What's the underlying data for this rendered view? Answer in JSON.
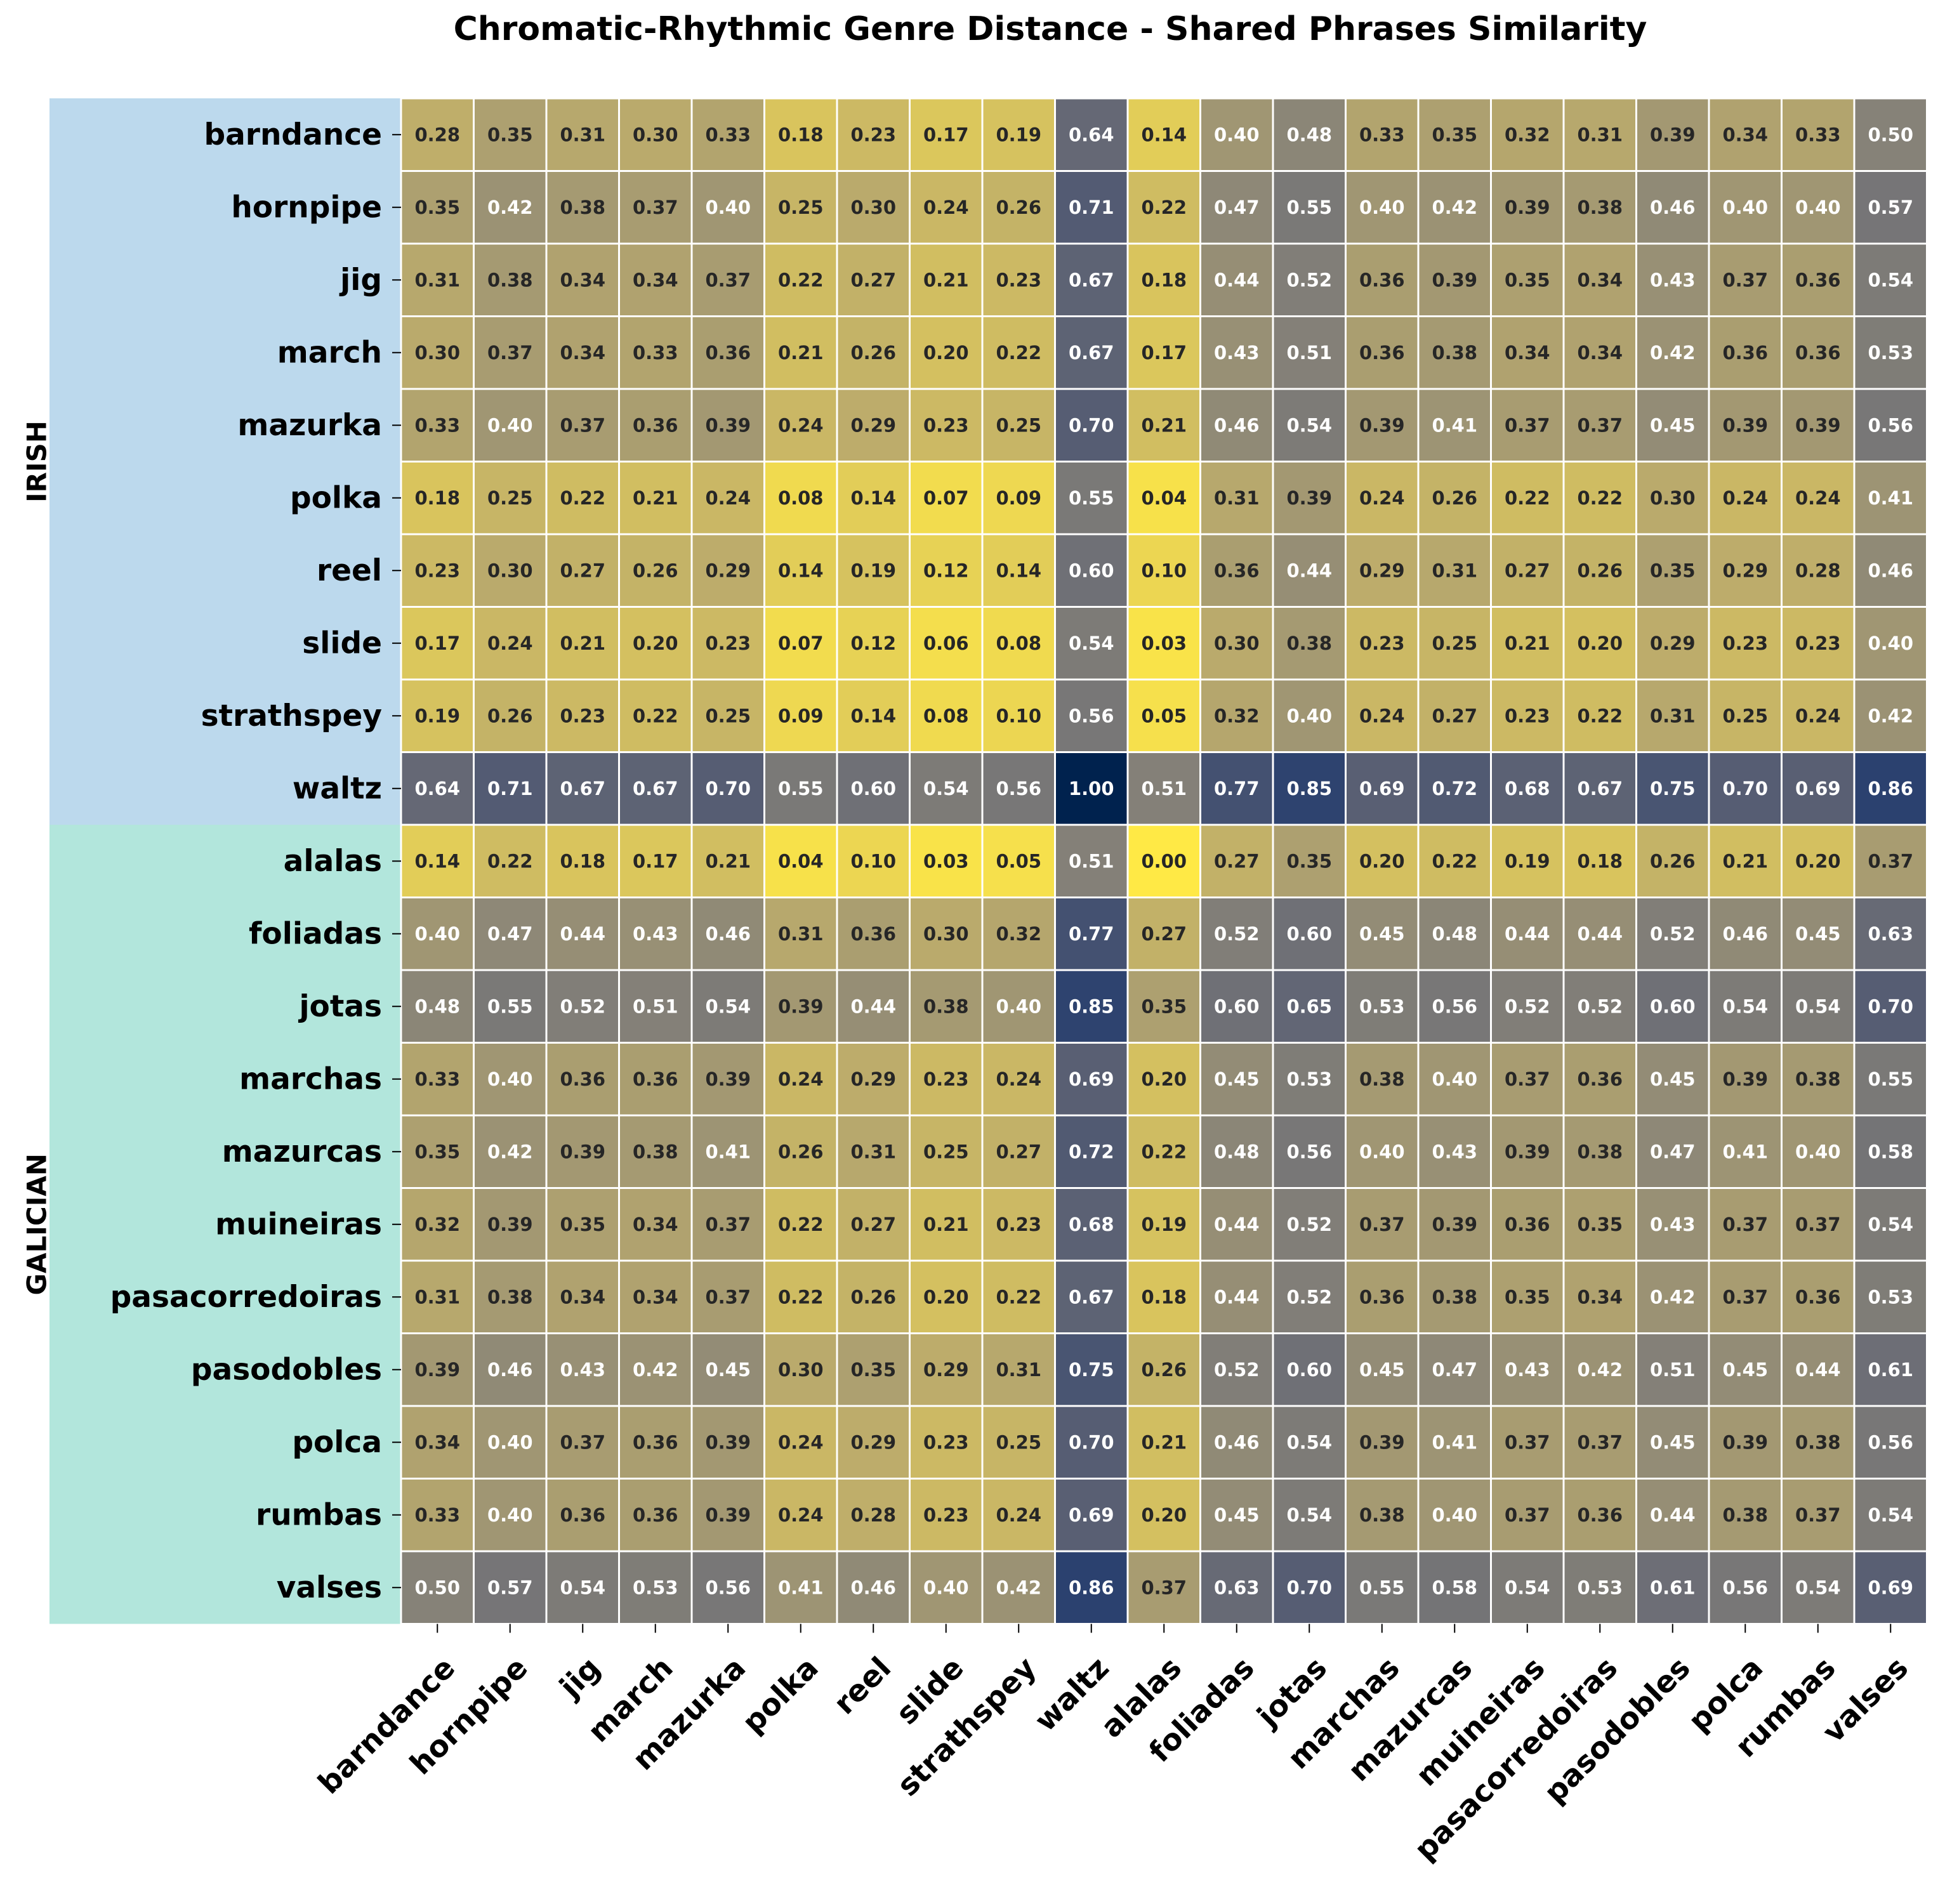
{
  "chart_data": {
    "type": "heatmap",
    "title": "Chromatic-Rhythmic Genre Distance - Shared Phrases Similarity",
    "xlabel": "",
    "ylabel": "",
    "colormap": "cividis_r",
    "value_range": [
      0,
      1
    ],
    "group_colors": {
      "IRISH": "#bcd9ed",
      "GALICIAN": "#b2e6dc"
    },
    "row_groups": [
      {
        "label": "IRISH",
        "count": 10
      },
      {
        "label": "GALICIAN",
        "count": 11
      }
    ],
    "categories": [
      "barndance",
      "hornpipe",
      "jig",
      "march",
      "mazurka",
      "polka",
      "reel",
      "slide",
      "strathspey",
      "waltz",
      "alalas",
      "foliadas",
      "jotas",
      "marchas",
      "mazurcas",
      "muineiras",
      "pasacorredoiras",
      "pasodobles",
      "polca",
      "rumbas",
      "valses"
    ],
    "values": [
      [
        0.28,
        0.35,
        0.31,
        0.3,
        0.33,
        0.18,
        0.23,
        0.17,
        0.19,
        0.64,
        0.14,
        0.4,
        0.48,
        0.33,
        0.35,
        0.32,
        0.31,
        0.39,
        0.34,
        0.33,
        0.5
      ],
      [
        0.35,
        0.42,
        0.38,
        0.37,
        0.4,
        0.25,
        0.3,
        0.24,
        0.26,
        0.71,
        0.22,
        0.47,
        0.55,
        0.4,
        0.42,
        0.39,
        0.38,
        0.46,
        0.4,
        0.4,
        0.57
      ],
      [
        0.31,
        0.38,
        0.34,
        0.34,
        0.37,
        0.22,
        0.27,
        0.21,
        0.23,
        0.67,
        0.18,
        0.44,
        0.52,
        0.36,
        0.39,
        0.35,
        0.34,
        0.43,
        0.37,
        0.36,
        0.54
      ],
      [
        0.3,
        0.37,
        0.34,
        0.33,
        0.36,
        0.21,
        0.26,
        0.2,
        0.22,
        0.67,
        0.17,
        0.43,
        0.51,
        0.36,
        0.38,
        0.34,
        0.34,
        0.42,
        0.36,
        0.36,
        0.53
      ],
      [
        0.33,
        0.4,
        0.37,
        0.36,
        0.39,
        0.24,
        0.29,
        0.23,
        0.25,
        0.7,
        0.21,
        0.46,
        0.54,
        0.39,
        0.41,
        0.37,
        0.37,
        0.45,
        0.39,
        0.39,
        0.56
      ],
      [
        0.18,
        0.25,
        0.22,
        0.21,
        0.24,
        0.08,
        0.14,
        0.07,
        0.09,
        0.55,
        0.04,
        0.31,
        0.39,
        0.24,
        0.26,
        0.22,
        0.22,
        0.3,
        0.24,
        0.24,
        0.41
      ],
      [
        0.23,
        0.3,
        0.27,
        0.26,
        0.29,
        0.14,
        0.19,
        0.12,
        0.14,
        0.6,
        0.1,
        0.36,
        0.44,
        0.29,
        0.31,
        0.27,
        0.26,
        0.35,
        0.29,
        0.28,
        0.46
      ],
      [
        0.17,
        0.24,
        0.21,
        0.2,
        0.23,
        0.07,
        0.12,
        0.06,
        0.08,
        0.54,
        0.03,
        0.3,
        0.38,
        0.23,
        0.25,
        0.21,
        0.2,
        0.29,
        0.23,
        0.23,
        0.4
      ],
      [
        0.19,
        0.26,
        0.23,
        0.22,
        0.25,
        0.09,
        0.14,
        0.08,
        0.1,
        0.56,
        0.05,
        0.32,
        0.4,
        0.24,
        0.27,
        0.23,
        0.22,
        0.31,
        0.25,
        0.24,
        0.42
      ],
      [
        0.64,
        0.71,
        0.67,
        0.67,
        0.7,
        0.55,
        0.6,
        0.54,
        0.56,
        1.0,
        0.51,
        0.77,
        0.85,
        0.69,
        0.72,
        0.68,
        0.67,
        0.75,
        0.7,
        0.69,
        0.86
      ],
      [
        0.14,
        0.22,
        0.18,
        0.17,
        0.21,
        0.04,
        0.1,
        0.03,
        0.05,
        0.51,
        0.0,
        0.27,
        0.35,
        0.2,
        0.22,
        0.19,
        0.18,
        0.26,
        0.21,
        0.2,
        0.37
      ],
      [
        0.4,
        0.47,
        0.44,
        0.43,
        0.46,
        0.31,
        0.36,
        0.3,
        0.32,
        0.77,
        0.27,
        0.52,
        0.6,
        0.45,
        0.48,
        0.44,
        0.44,
        0.52,
        0.46,
        0.45,
        0.63
      ],
      [
        0.48,
        0.55,
        0.52,
        0.51,
        0.54,
        0.39,
        0.44,
        0.38,
        0.4,
        0.85,
        0.35,
        0.6,
        0.65,
        0.53,
        0.56,
        0.52,
        0.52,
        0.6,
        0.54,
        0.54,
        0.7
      ],
      [
        0.33,
        0.4,
        0.36,
        0.36,
        0.39,
        0.24,
        0.29,
        0.23,
        0.24,
        0.69,
        0.2,
        0.45,
        0.53,
        0.38,
        0.4,
        0.37,
        0.36,
        0.45,
        0.39,
        0.38,
        0.55
      ],
      [
        0.35,
        0.42,
        0.39,
        0.38,
        0.41,
        0.26,
        0.31,
        0.25,
        0.27,
        0.72,
        0.22,
        0.48,
        0.56,
        0.4,
        0.43,
        0.39,
        0.38,
        0.47,
        0.41,
        0.4,
        0.58
      ],
      [
        0.32,
        0.39,
        0.35,
        0.34,
        0.37,
        0.22,
        0.27,
        0.21,
        0.23,
        0.68,
        0.19,
        0.44,
        0.52,
        0.37,
        0.39,
        0.36,
        0.35,
        0.43,
        0.37,
        0.37,
        0.54
      ],
      [
        0.31,
        0.38,
        0.34,
        0.34,
        0.37,
        0.22,
        0.26,
        0.2,
        0.22,
        0.67,
        0.18,
        0.44,
        0.52,
        0.36,
        0.38,
        0.35,
        0.34,
        0.42,
        0.37,
        0.36,
        0.53
      ],
      [
        0.39,
        0.46,
        0.43,
        0.42,
        0.45,
        0.3,
        0.35,
        0.29,
        0.31,
        0.75,
        0.26,
        0.52,
        0.6,
        0.45,
        0.47,
        0.43,
        0.42,
        0.51,
        0.45,
        0.44,
        0.61
      ],
      [
        0.34,
        0.4,
        0.37,
        0.36,
        0.39,
        0.24,
        0.29,
        0.23,
        0.25,
        0.7,
        0.21,
        0.46,
        0.54,
        0.39,
        0.41,
        0.37,
        0.37,
        0.45,
        0.39,
        0.38,
        0.56
      ],
      [
        0.33,
        0.4,
        0.36,
        0.36,
        0.39,
        0.24,
        0.28,
        0.23,
        0.24,
        0.69,
        0.2,
        0.45,
        0.54,
        0.38,
        0.4,
        0.37,
        0.36,
        0.44,
        0.38,
        0.37,
        0.54
      ],
      [
        0.5,
        0.57,
        0.54,
        0.53,
        0.56,
        0.41,
        0.46,
        0.4,
        0.42,
        0.86,
        0.37,
        0.63,
        0.7,
        0.55,
        0.58,
        0.54,
        0.53,
        0.61,
        0.56,
        0.54,
        0.69
      ]
    ],
    "grid": true,
    "legend": "none"
  }
}
